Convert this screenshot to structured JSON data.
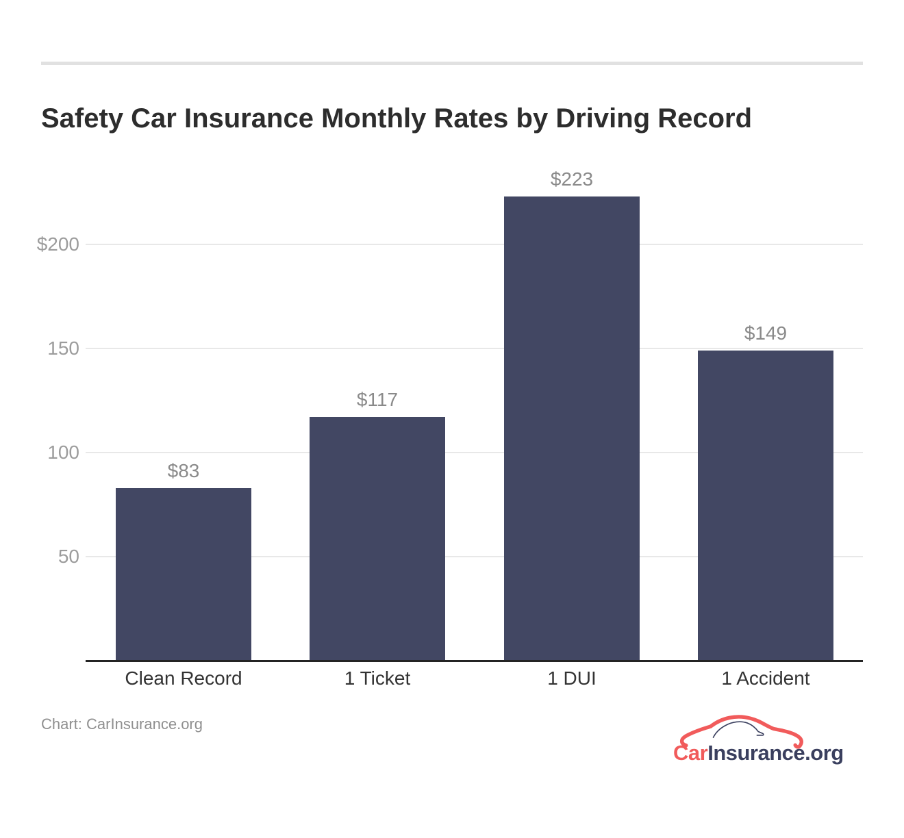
{
  "chart": {
    "title": "Safety Car Insurance Monthly Rates by Driving Record"
  },
  "chart_data": {
    "type": "bar",
    "title": "Safety Car Insurance Monthly Rates by Driving Record",
    "categories": [
      "Clean Record",
      "1 Ticket",
      "1 DUI",
      "1 Accident"
    ],
    "values": [
      83,
      117,
      223,
      149
    ],
    "value_labels": [
      "$83",
      "$117",
      "$223",
      "$149"
    ],
    "xlabel": "",
    "ylabel": "",
    "ylim": [
      0,
      230
    ],
    "yticks": [
      50,
      100,
      150,
      200
    ],
    "ytick_labels": [
      "50",
      "100",
      "150",
      "$200"
    ],
    "grid": true,
    "legend": "none",
    "bar_color": "#424763"
  },
  "footer": {
    "source": "Chart: CarInsurance.org"
  },
  "logo": {
    "car": "Car",
    "rest": "Insurance.org",
    "car_icon": "car-outline-icon"
  },
  "colors": {
    "bar": "#424763",
    "grid": "#e8e8e8",
    "axis": "#242424",
    "title": "#2d2d2d",
    "category_label": "#333333",
    "value_label": "#8a8a8a",
    "ytick_label": "#9c9c9c",
    "divider": "#e1e1e1",
    "source_text": "#8f8f8f",
    "logo_red": "#f15b5b",
    "logo_navy": "#3a3f5e"
  }
}
